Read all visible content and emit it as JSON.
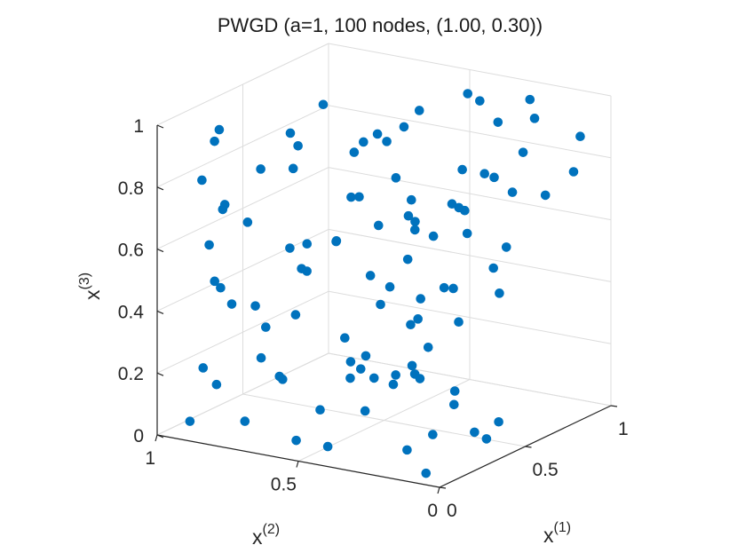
{
  "chart_data": {
    "type": "scatter3d",
    "title": "PWGD (a=1, 100 nodes, (1.00, 0.30))",
    "x1label": "x",
    "x1label_sup": "(1)",
    "x2label": "x",
    "x2label_sup": "(2)",
    "x3label": "x",
    "x3label_sup": "(3)",
    "x1ticks": [
      "0",
      "0.5",
      "1"
    ],
    "x2ticks": [
      "0",
      "0.5",
      "1"
    ],
    "x3ticks": [
      "0",
      "0.2",
      "0.4",
      "0.6",
      "0.8",
      "1"
    ],
    "x1lim": [
      0,
      1
    ],
    "x2lim": [
      0,
      1
    ],
    "x3lim": [
      0,
      1
    ],
    "grid": true,
    "marker_color": "#0072BD",
    "points": [
      [
        0.02,
        0.06,
        0.03
      ],
      [
        0.14,
        0.2,
        0.05
      ],
      [
        0.04,
        0.42,
        0.05
      ],
      [
        0.07,
        0.55,
        0.04
      ],
      [
        0.1,
        0.75,
        0.06
      ],
      [
        0.16,
        0.52,
        0.12
      ],
      [
        0.06,
        0.3,
        0.18
      ],
      [
        0.01,
        0.89,
        0.06
      ],
      [
        0.12,
        0.91,
        0.2
      ],
      [
        0.17,
        0.67,
        0.2
      ],
      [
        0.05,
        0.82,
        0.18
      ],
      [
        0.04,
        0.58,
        0.24
      ],
      [
        0.34,
        0.04,
        0.06
      ],
      [
        0.29,
        0.2,
        0.06
      ],
      [
        0.27,
        0.04,
        0.1
      ],
      [
        0.51,
        0.1,
        0.06
      ],
      [
        0.48,
        0.24,
        0.1
      ],
      [
        0.34,
        0.37,
        0.18
      ],
      [
        0.27,
        0.48,
        0.2
      ],
      [
        0.47,
        0.6,
        0.18
      ],
      [
        0.7,
        0.58,
        0.08
      ],
      [
        0.56,
        0.38,
        0.24
      ],
      [
        0.41,
        0.51,
        0.23
      ],
      [
        0.63,
        0.47,
        0.12
      ],
      [
        0.38,
        0.3,
        0.2
      ],
      [
        0.6,
        0.31,
        0.1
      ],
      [
        0.15,
        0.37,
        0.28
      ],
      [
        0.4,
        0.34,
        0.23
      ],
      [
        0.31,
        0.42,
        0.2
      ],
      [
        0.03,
        0.65,
        0.3
      ],
      [
        0.32,
        0.93,
        0.35
      ],
      [
        0.26,
        0.81,
        0.38
      ],
      [
        0.54,
        0.43,
        0.31
      ],
      [
        0.37,
        0.56,
        0.29
      ],
      [
        0.09,
        0.67,
        0.38
      ],
      [
        0.33,
        0.71,
        0.35
      ],
      [
        0.73,
        0.51,
        0.33
      ],
      [
        0.22,
        0.93,
        0.45
      ],
      [
        0.09,
        0.83,
        0.48
      ],
      [
        0.28,
        0.7,
        0.58
      ],
      [
        0.55,
        0.7,
        0.53
      ],
      [
        0.32,
        0.37,
        0.5
      ],
      [
        0.47,
        0.53,
        0.47
      ],
      [
        0.22,
        0.21,
        0.45
      ],
      [
        0.62,
        0.36,
        0.42
      ],
      [
        0.2,
        0.61,
        0.55
      ],
      [
        0.04,
        0.84,
        0.63
      ],
      [
        0.15,
        0.3,
        0.5
      ],
      [
        0.41,
        0.2,
        0.5
      ],
      [
        0.58,
        0.14,
        0.45
      ],
      [
        0.71,
        0.24,
        0.48
      ],
      [
        0.26,
        0.09,
        0.45
      ],
      [
        0.05,
        0.5,
        0.6
      ],
      [
        0.42,
        0.62,
        0.58
      ],
      [
        0.72,
        0.75,
        0.62
      ],
      [
        0.23,
        0.9,
        0.7
      ],
      [
        0.1,
        0.53,
        0.67
      ],
      [
        0.02,
        0.78,
        0.76
      ],
      [
        0.59,
        0.26,
        0.62
      ],
      [
        0.5,
        0.39,
        0.66
      ],
      [
        0.27,
        0.38,
        0.71
      ],
      [
        0.4,
        0.33,
        0.67
      ],
      [
        0.64,
        0.32,
        0.68
      ],
      [
        0.88,
        0.49,
        0.6
      ],
      [
        0.8,
        0.64,
        0.68
      ],
      [
        0.79,
        0.32,
        0.75
      ],
      [
        0.85,
        0.22,
        0.82
      ],
      [
        0.7,
        0.05,
        0.75
      ],
      [
        0.59,
        0.1,
        0.78
      ],
      [
        0.33,
        0.3,
        0.79
      ],
      [
        0.08,
        0.89,
        0.82
      ],
      [
        0.19,
        0.4,
        0.82
      ],
      [
        0.11,
        0.7,
        0.88
      ],
      [
        0.17,
        0.9,
        0.92
      ],
      [
        0.38,
        0.15,
        0.9
      ],
      [
        0.5,
        0.11,
        0.85
      ],
      [
        0.25,
        0.67,
        0.85
      ],
      [
        0.53,
        0.85,
        0.86
      ],
      [
        0.88,
        0.66,
        0.82
      ],
      [
        0.92,
        0.06,
        0.88
      ],
      [
        0.95,
        0.24,
        0.9
      ],
      [
        0.61,
        0.59,
        0.88
      ],
      [
        0.45,
        0.46,
        0.92
      ],
      [
        0.72,
        0.23,
        0.95
      ],
      [
        0.64,
        0.46,
        0.97
      ],
      [
        0.84,
        0.41,
        0.98
      ],
      [
        0.89,
        0.22,
        0.98
      ],
      [
        0.38,
        0.5,
        0.93
      ],
      [
        0.13,
        0.58,
        0.97
      ],
      [
        0.59,
        0.77,
        0.95
      ],
      [
        0.28,
        0.95,
        0.92
      ],
      [
        0.98,
        0.12,
        0.74
      ],
      [
        0.82,
        0.8,
        0.73
      ],
      [
        0.33,
        0.88,
        0.62
      ],
      [
        0.84,
        0.62,
        0.55
      ],
      [
        0.96,
        0.44,
        0.92
      ],
      [
        0.21,
        0.24,
        0.64
      ],
      [
        0.46,
        0.19,
        0.74
      ],
      [
        0.92,
        0.58,
        0.47
      ],
      [
        0.67,
        0.17,
        0.57
      ]
    ]
  }
}
